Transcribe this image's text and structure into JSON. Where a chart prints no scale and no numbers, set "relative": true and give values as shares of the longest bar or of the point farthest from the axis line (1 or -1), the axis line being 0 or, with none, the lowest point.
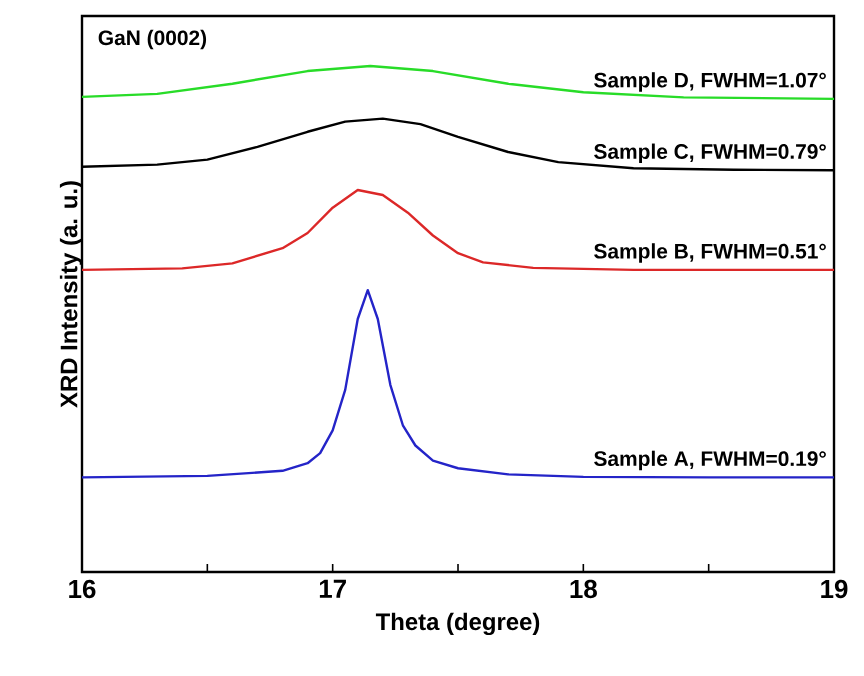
{
  "chart_data": {
    "type": "line",
    "relative": true,
    "xlabel": "Theta (degree)",
    "ylabel": "XRD Intensity (a. u.)",
    "annotations": [
      "GaN (0002)"
    ],
    "xlim": [
      16,
      19
    ],
    "xticks": [
      16,
      {
        "value": 16.5,
        "label": null
      },
      17,
      {
        "value": 17.5,
        "label": null
      },
      18,
      {
        "value": 18.5,
        "label": null
      },
      19
    ],
    "series": [
      {
        "name": "Sample A, FWHM=0.19°",
        "color": "#2424c8",
        "x": [
          16,
          16.5,
          16.8,
          16.9,
          16.95,
          17.0,
          17.05,
          17.1,
          17.14,
          17.18,
          17.23,
          17.28,
          17.33,
          17.4,
          17.5,
          17.7,
          18,
          18.5,
          19
        ],
        "values": [
          0.187,
          0.19,
          0.2,
          0.215,
          0.235,
          0.28,
          0.36,
          0.5,
          0.557,
          0.5,
          0.37,
          0.29,
          0.25,
          0.22,
          0.205,
          0.193,
          0.188,
          0.187,
          0.187
        ]
      },
      {
        "name": "Sample B, FWHM=0.51°",
        "color": "#dc2828",
        "x": [
          16,
          16.4,
          16.6,
          16.8,
          16.9,
          17.0,
          17.1,
          17.2,
          17.3,
          17.4,
          17.5,
          17.6,
          17.8,
          18.2,
          19
        ],
        "values": [
          0.597,
          0.6,
          0.61,
          0.64,
          0.67,
          0.72,
          0.755,
          0.745,
          0.71,
          0.665,
          0.63,
          0.612,
          0.601,
          0.597,
          0.597
        ]
      },
      {
        "name": "Sample C, FWHM=0.79°",
        "color": "#000000",
        "x": [
          16,
          16.3,
          16.5,
          16.7,
          16.9,
          17.05,
          17.2,
          17.35,
          17.5,
          17.7,
          17.9,
          18.2,
          18.6,
          19
        ],
        "values": [
          0.801,
          0.805,
          0.815,
          0.84,
          0.87,
          0.89,
          0.896,
          0.885,
          0.86,
          0.83,
          0.81,
          0.798,
          0.795,
          0.794
        ]
      },
      {
        "name": "Sample D, FWHM=1.07°",
        "color": "#28dc28",
        "x": [
          16,
          16.3,
          16.6,
          16.9,
          17.15,
          17.4,
          17.7,
          18.0,
          18.4,
          19
        ],
        "values": [
          0.939,
          0.945,
          0.965,
          0.99,
          1.0,
          0.99,
          0.965,
          0.948,
          0.938,
          0.935
        ]
      }
    ]
  }
}
